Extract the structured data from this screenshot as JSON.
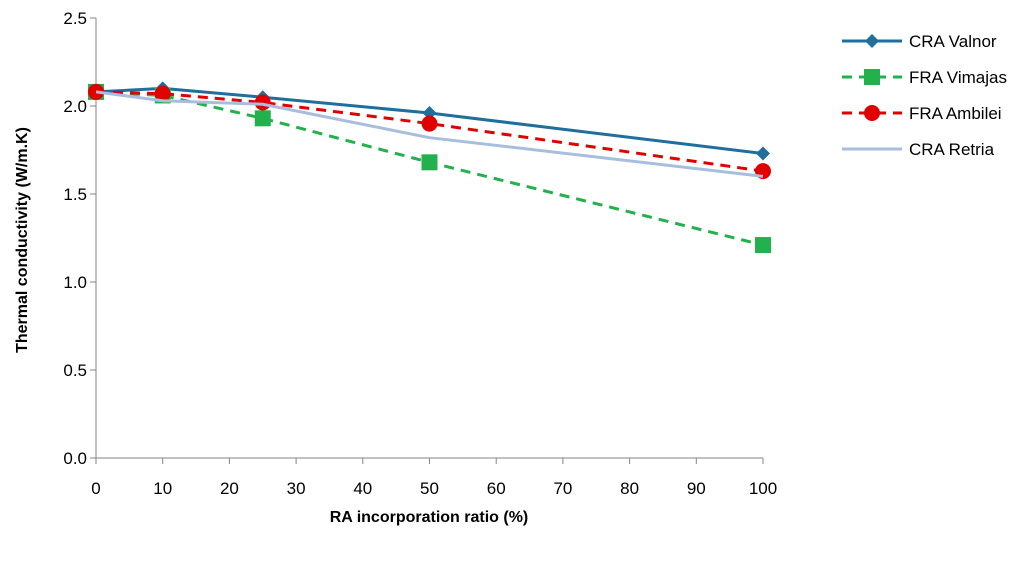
{
  "chart_data": {
    "type": "line",
    "xlabel": "RA incorporation ratio (%)",
    "ylabel": "Thermal conductivity (W/m.K)",
    "xlim": [
      0,
      100
    ],
    "ylim": [
      0,
      2.5
    ],
    "x_ticks": [
      "0",
      "10",
      "20",
      "30",
      "40",
      "50",
      "60",
      "70",
      "80",
      "90",
      "100"
    ],
    "y_ticks": [
      "0.0",
      "0.5",
      "1.0",
      "1.5",
      "2.0",
      "2.5"
    ],
    "x_tick_values": [
      0,
      10,
      20,
      30,
      40,
      50,
      60,
      70,
      80,
      90,
      100
    ],
    "y_tick_values": [
      0,
      0.5,
      1.0,
      1.5,
      2.0,
      2.5
    ],
    "grid": false,
    "legend_position": "right",
    "x": [
      0,
      10,
      25,
      50,
      100
    ],
    "series": [
      {
        "name": "CRA Valnor",
        "values": [
          2.08,
          2.1,
          2.05,
          1.96,
          1.73
        ],
        "color": "#1F6E9C",
        "dash": "solid",
        "marker": "diamond"
      },
      {
        "name": "FRA Vimajas",
        "values": [
          2.08,
          2.06,
          1.93,
          1.68,
          1.21
        ],
        "color": "#22B14C",
        "dash": "dashed",
        "marker": "square"
      },
      {
        "name": "FRA Ambilei",
        "values": [
          2.08,
          2.07,
          2.02,
          1.9,
          1.63
        ],
        "color": "#E00000",
        "dash": "dashed",
        "marker": "circle"
      },
      {
        "name": "CRA Retria",
        "values": [
          2.08,
          2.03,
          2.01,
          1.82,
          1.6
        ],
        "color": "#A7BEDC",
        "dash": "solid",
        "marker": "none"
      }
    ]
  }
}
